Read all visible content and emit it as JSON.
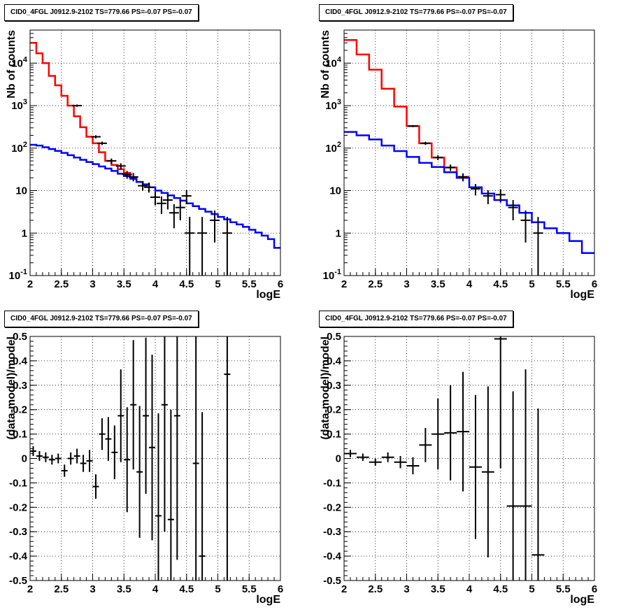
{
  "colors": {
    "data": "#000000",
    "total_model": "#ff0000",
    "background_model": "#0000ff",
    "grid": "#000000"
  },
  "chart_data": [
    {
      "type": "line",
      "title": "CID0_4FGL J0912.9-2102 TS=779.66 PS=-0.07 PS=-0.07",
      "xlabel": "logE",
      "ylabel": "Nb of counts",
      "xlim": [
        2,
        6
      ],
      "ylim": [
        0.1,
        60000
      ],
      "log_y": true,
      "grid": true,
      "x_ticks": [
        "2",
        "2.5",
        "3",
        "3.5",
        "4",
        "4.5",
        "5",
        "5.5",
        "6"
      ],
      "y_ticks": [
        "10^-1",
        "1",
        "10",
        "10^2",
        "10^3",
        "10^4"
      ],
      "series": [
        {
          "style": "step-red",
          "bins": [
            2.0,
            2.1,
            2.2,
            2.3,
            2.4,
            2.5,
            2.6,
            2.7,
            2.8,
            2.9,
            3.0,
            3.1,
            3.2,
            3.3,
            3.4,
            3.5,
            3.6,
            3.7,
            3.8,
            3.9,
            4.0
          ],
          "values": [
            30000,
            17000,
            10000,
            5000,
            3000,
            1700,
            1000,
            560,
            310,
            185,
            130,
            80,
            50,
            40,
            32,
            26,
            20,
            16,
            14,
            12
          ]
        },
        {
          "style": "step-blue",
          "bins": [
            2.0,
            2.1,
            2.2,
            2.3,
            2.4,
            2.5,
            2.6,
            2.7,
            2.8,
            2.9,
            3.0,
            3.1,
            3.2,
            3.3,
            3.4,
            3.5,
            3.6,
            3.7,
            3.8,
            3.9,
            4.0,
            4.1,
            4.2,
            4.3,
            4.4,
            4.5,
            4.6,
            4.7,
            4.8,
            4.9,
            5.0,
            5.1,
            5.2,
            5.3,
            5.4,
            5.5,
            5.6,
            5.7,
            5.8,
            5.9,
            6.0
          ],
          "values": [
            120,
            115,
            105,
            95,
            86,
            77,
            68,
            60,
            53,
            47,
            42,
            37,
            33,
            29,
            25,
            22,
            19,
            16,
            14,
            12,
            10,
            8.8,
            7.7,
            6.7,
            5.8,
            5.0,
            4.3,
            3.7,
            3.2,
            2.8,
            2.4,
            2.1,
            1.8,
            1.6,
            1.4,
            1.2,
            1.03,
            0.87,
            0.72,
            0.45
          ]
        },
        {
          "style": "points",
          "points": [
            {
              "x": 2.75,
              "y": 1000,
              "lo": 940,
              "hi": 1060
            },
            {
              "x": 3.05,
              "y": 185,
              "lo": 170,
              "hi": 200
            },
            {
              "x": 3.15,
              "y": 130,
              "lo": 118,
              "hi": 142
            },
            {
              "x": 3.3,
              "y": 50,
              "lo": 43,
              "hi": 57
            },
            {
              "x": 3.45,
              "y": 38,
              "lo": 32,
              "hi": 44
            },
            {
              "x": 3.55,
              "y": 24,
              "lo": 19,
              "hi": 29
            },
            {
              "x": 3.65,
              "y": 21,
              "lo": 16.5,
              "hi": 26
            },
            {
              "x": 3.8,
              "y": 13,
              "lo": 10,
              "hi": 16.5
            },
            {
              "x": 3.9,
              "y": 12,
              "lo": 9,
              "hi": 15.5
            },
            {
              "x": 4.0,
              "y": 7,
              "lo": 4.5,
              "hi": 9.5
            },
            {
              "x": 4.1,
              "y": 5,
              "lo": 2.8,
              "hi": 7.3
            },
            {
              "x": 4.2,
              "y": 6,
              "lo": 3.6,
              "hi": 8.5
            },
            {
              "x": 4.3,
              "y": 3,
              "lo": 1.3,
              "hi": 4.8
            },
            {
              "x": 4.4,
              "y": 4,
              "lo": 2.0,
              "hi": 6.0
            },
            {
              "x": 4.5,
              "y": 7.5,
              "lo": 4.8,
              "hi": 10.2
            },
            {
              "x": 4.55,
              "y": 1,
              "lo": 0.1,
              "hi": 2.4
            },
            {
              "x": 4.75,
              "y": 1,
              "lo": 0.1,
              "hi": 2.4
            },
            {
              "x": 4.95,
              "y": 2,
              "lo": 0.6,
              "hi": 3.4
            },
            {
              "x": 5.15,
              "y": 1,
              "lo": 0.1,
              "hi": 2.4
            }
          ]
        }
      ]
    },
    {
      "type": "line",
      "title": "CID0_4FGL J0912.9-2102 TS=779.66 PS=-0.07 PS=-0.07",
      "xlabel": "logE",
      "ylabel": "Nb of counts",
      "xlim": [
        2,
        6
      ],
      "ylim": [
        0.1,
        60000
      ],
      "log_y": true,
      "grid": true,
      "x_ticks": [
        "2",
        "2.5",
        "3",
        "3.5",
        "4",
        "4.5",
        "5",
        "5.5",
        "6"
      ],
      "y_ticks": [
        "10^-1",
        "1",
        "10",
        "10^2",
        "10^3",
        "10^4"
      ],
      "series": [
        {
          "style": "step-red",
          "bins": [
            2.0,
            2.2,
            2.4,
            2.6,
            2.8,
            3.0,
            3.2,
            3.4,
            3.6,
            3.8,
            4.0
          ],
          "values": [
            35000,
            16000,
            7000,
            2500,
            950,
            330,
            130,
            60,
            35,
            21
          ]
        },
        {
          "style": "step-blue",
          "bins": [
            2.0,
            2.2,
            2.4,
            2.6,
            2.8,
            3.0,
            3.2,
            3.4,
            3.6,
            3.8,
            4.0,
            4.2,
            4.4,
            4.6,
            4.8,
            5.0,
            5.2,
            5.4,
            5.6,
            5.8,
            6.0
          ],
          "values": [
            240,
            200,
            160,
            115,
            85,
            62,
            45,
            36,
            27,
            20,
            12,
            8.5,
            6,
            4.5,
            3.0,
            1.8,
            1.3,
            1.0,
            0.65,
            0.34
          ]
        },
        {
          "style": "points",
          "points": [
            {
              "x": 3.1,
              "y": 330,
              "lo": 312,
              "hi": 348
            },
            {
              "x": 3.3,
              "y": 130,
              "lo": 119,
              "hi": 141
            },
            {
              "x": 3.5,
              "y": 60,
              "lo": 52,
              "hi": 68
            },
            {
              "x": 3.7,
              "y": 35,
              "lo": 29,
              "hi": 41
            },
            {
              "x": 3.9,
              "y": 21,
              "lo": 16.5,
              "hi": 25.5
            },
            {
              "x": 4.1,
              "y": 11,
              "lo": 7.7,
              "hi": 14.3
            },
            {
              "x": 4.3,
              "y": 7.5,
              "lo": 4.8,
              "hi": 10.2
            },
            {
              "x": 4.5,
              "y": 8,
              "lo": 5.2,
              "hi": 10.8
            },
            {
              "x": 4.7,
              "y": 4,
              "lo": 2.0,
              "hi": 6.0
            },
            {
              "x": 4.9,
              "y": 2,
              "lo": 0.6,
              "hi": 3.4
            },
            {
              "x": 5.1,
              "y": 1,
              "lo": 0.1,
              "hi": 2.4
            }
          ]
        }
      ]
    },
    {
      "type": "scatter",
      "title": "CID0_4FGL J0912.9-2102 TS=779.66 PS=-0.07 PS=-0.07",
      "xlabel": "logE",
      "ylabel": "(data-model)/model",
      "xlim": [
        2,
        6
      ],
      "ylim": [
        -0.5,
        0.5
      ],
      "grid": true,
      "x_ticks": [
        "2",
        "2.5",
        "3",
        "3.5",
        "4",
        "4.5",
        "5",
        "5.5",
        "6"
      ],
      "y_ticks": [
        "-0.5",
        "-0.4",
        "-0.3",
        "-0.2",
        "-0.1",
        "0",
        "0.1",
        "0.2",
        "0.3",
        "0.4",
        "0.5"
      ],
      "bin_width": 0.1,
      "points": [
        {
          "x": 2.05,
          "y": 0.03,
          "err": 0.02
        },
        {
          "x": 2.15,
          "y": 0.01,
          "err": 0.02
        },
        {
          "x": 2.25,
          "y": 0.005,
          "err": 0.02
        },
        {
          "x": 2.35,
          "y": -0.005,
          "err": 0.02
        },
        {
          "x": 2.45,
          "y": 0.0,
          "err": 0.02
        },
        {
          "x": 2.55,
          "y": -0.05,
          "err": 0.025
        },
        {
          "x": 2.65,
          "y": 0.0,
          "err": 0.025
        },
        {
          "x": 2.75,
          "y": 0.01,
          "err": 0.03
        },
        {
          "x": 2.85,
          "y": -0.02,
          "err": 0.035
        },
        {
          "x": 2.95,
          "y": -0.01,
          "err": 0.045
        },
        {
          "x": 3.05,
          "y": -0.115,
          "err": 0.05
        },
        {
          "x": 3.15,
          "y": 0.1,
          "err": 0.065
        },
        {
          "x": 3.25,
          "y": 0.08,
          "err": 0.09
        },
        {
          "x": 3.35,
          "y": 0.025,
          "err": 0.11
        },
        {
          "x": 3.45,
          "y": 0.175,
          "err": 0.19
        },
        {
          "x": 3.55,
          "y": -0.005,
          "err": 0.215
        },
        {
          "x": 3.65,
          "y": 0.22,
          "err": 0.265
        },
        {
          "x": 3.75,
          "y": -0.055,
          "err": 0.27
        },
        {
          "x": 3.85,
          "y": 0.175,
          "err": 0.32
        },
        {
          "x": 3.95,
          "y": 0.045,
          "err": 0.38
        },
        {
          "x": 4.05,
          "y": -0.235,
          "err": 0.42
        },
        {
          "x": 4.15,
          "y": 0.22,
          "err": 0.52
        },
        {
          "x": 4.25,
          "y": -0.25,
          "err": 0.45
        },
        {
          "x": 4.35,
          "y": 0.175,
          "err": 0.59
        },
        {
          "x": 4.65,
          "y": -0.02,
          "err": 0.7
        },
        {
          "x": 4.75,
          "y": -0.4,
          "err": 0.59
        },
        {
          "x": 5.15,
          "y": 0.345,
          "err": 1.2
        }
      ]
    },
    {
      "type": "scatter",
      "title": "CID0_4FGL J0912.9-2102 TS=779.66 PS=-0.07 PS=-0.07",
      "xlabel": "logE",
      "ylabel": "(data-model)/model",
      "xlim": [
        2,
        6
      ],
      "ylim": [
        -0.5,
        0.5
      ],
      "grid": true,
      "x_ticks": [
        "2",
        "2.5",
        "3",
        "3.5",
        "4",
        "4.5",
        "5",
        "5.5",
        "6"
      ],
      "y_ticks": [
        "-0.5",
        "-0.4",
        "-0.3",
        "-0.2",
        "-0.1",
        "0",
        "0.1",
        "0.2",
        "0.3",
        "0.4",
        "0.5"
      ],
      "bin_width": 0.2,
      "points": [
        {
          "x": 2.1,
          "y": 0.02,
          "err": 0.015
        },
        {
          "x": 2.3,
          "y": 0.005,
          "err": 0.015
        },
        {
          "x": 2.5,
          "y": -0.015,
          "err": 0.015
        },
        {
          "x": 2.7,
          "y": 0.005,
          "err": 0.02
        },
        {
          "x": 2.9,
          "y": -0.015,
          "err": 0.025
        },
        {
          "x": 3.1,
          "y": -0.03,
          "err": 0.035
        },
        {
          "x": 3.3,
          "y": 0.055,
          "err": 0.07
        },
        {
          "x": 3.5,
          "y": 0.1,
          "err": 0.145
        },
        {
          "x": 3.7,
          "y": 0.105,
          "err": 0.195
        },
        {
          "x": 3.9,
          "y": 0.11,
          "err": 0.245
        },
        {
          "x": 4.1,
          "y": -0.035,
          "err": 0.295
        },
        {
          "x": 4.3,
          "y": -0.055,
          "err": 0.35
        },
        {
          "x": 4.5,
          "y": 0.49,
          "err": 0.53
        },
        {
          "x": 4.7,
          "y": -0.195,
          "err": 0.47
        },
        {
          "x": 4.9,
          "y": -0.195,
          "err": 0.56
        },
        {
          "x": 5.1,
          "y": -0.395,
          "err": 0.6
        }
      ]
    }
  ]
}
